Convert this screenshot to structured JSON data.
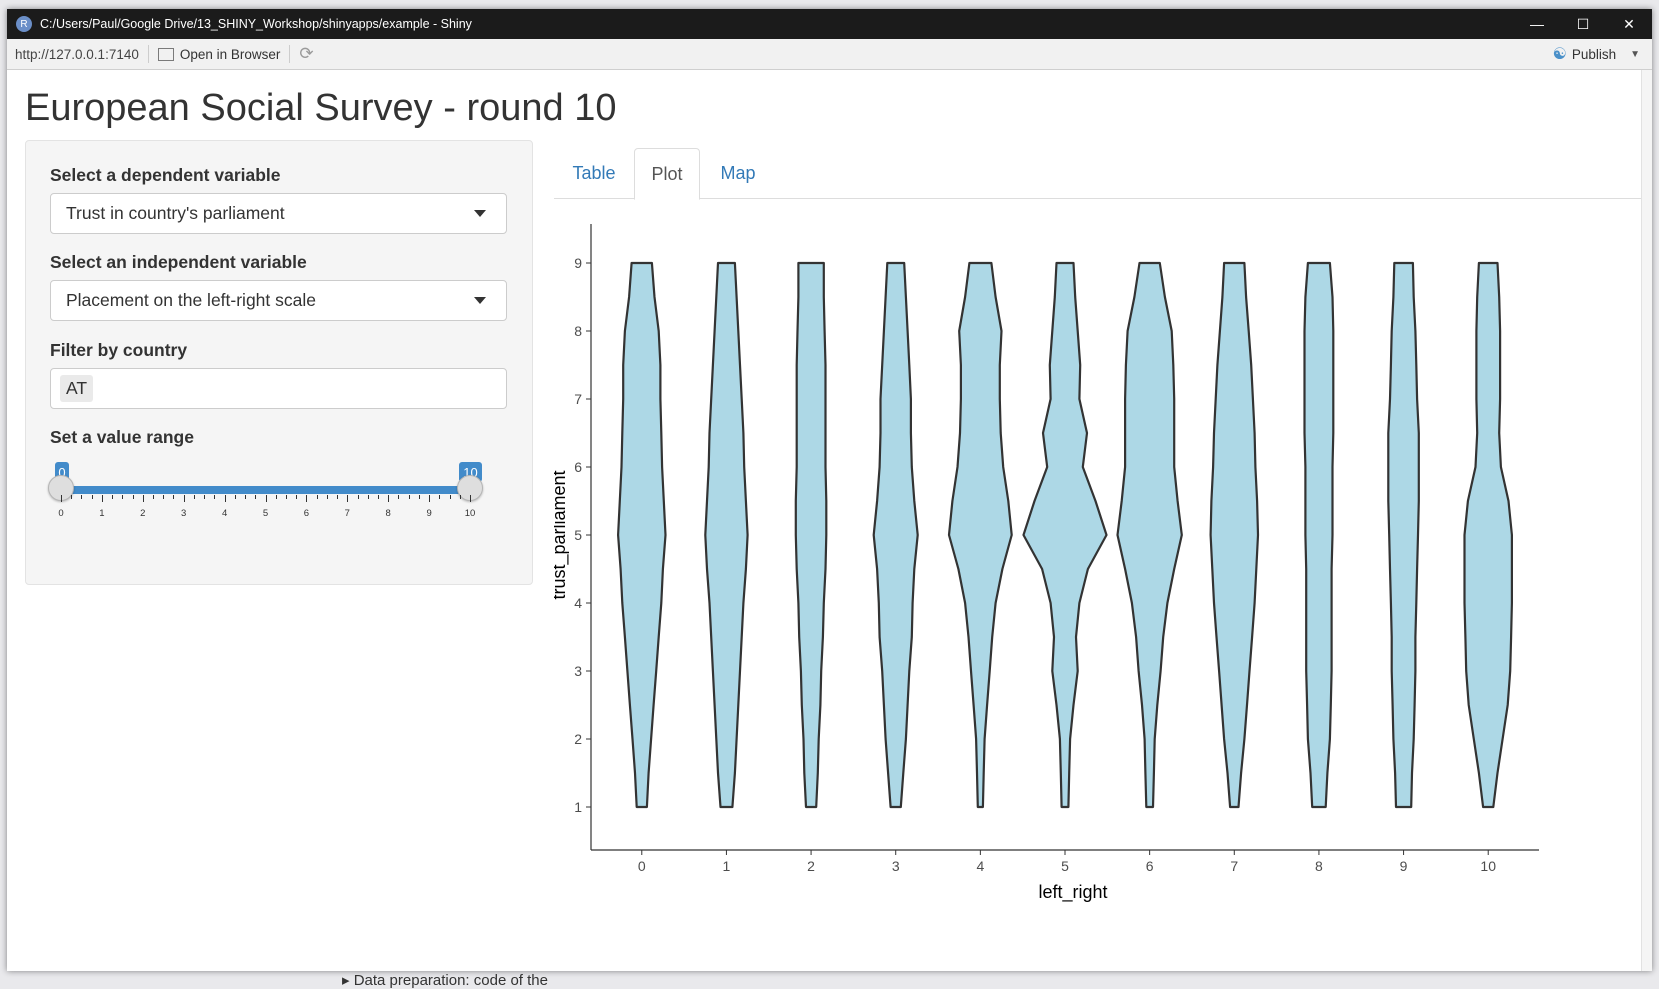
{
  "window": {
    "title": "C:/Users/Paul/Google Drive/13_SHINY_Workshop/shinyapps/example - Shiny",
    "app_icon": "R",
    "minimize_icon": "minimize-icon",
    "maximize_icon": "maximize-icon",
    "close_icon": "close-icon"
  },
  "toolbar": {
    "url": "http://127.0.0.1:7140",
    "open_browser_label": "Open in Browser",
    "publish_label": "Publish"
  },
  "page": {
    "title": "European Social Survey - round 10"
  },
  "sidebar": {
    "dependent_label": "Select a dependent variable",
    "dependent_value": "Trust in country's parliament",
    "independent_label": "Select an independent variable",
    "independent_value": "Placement on the left-right scale",
    "country_label": "Filter by country",
    "country_selected": "AT",
    "range_label": "Set a value range",
    "range_min": "0",
    "range_max": "10",
    "range_ticks": [
      "0",
      "1",
      "2",
      "3",
      "4",
      "5",
      "6",
      "7",
      "8",
      "9",
      "10"
    ]
  },
  "tabs": [
    {
      "label": "Table",
      "active": false
    },
    {
      "label": "Plot",
      "active": true
    },
    {
      "label": "Map",
      "active": false
    }
  ],
  "chart_data": {
    "type": "violin",
    "xlabel": "left_right",
    "ylabel": "trust_parliament",
    "categories": [
      "0",
      "1",
      "2",
      "3",
      "4",
      "5",
      "6",
      "7",
      "8",
      "9",
      "10"
    ],
    "y_ticks": [
      1,
      2,
      3,
      4,
      5,
      6,
      7,
      8,
      9
    ],
    "ylim": [
      1,
      9
    ],
    "fill_color": "#add8e6",
    "outline_color": "#333333",
    "density_y": [
      1,
      1.5,
      2,
      2.5,
      3,
      3.5,
      4,
      4.5,
      5,
      5.5,
      6,
      6.5,
      7,
      7.5,
      8,
      8.5,
      9
    ],
    "violins": [
      {
        "x": "0",
        "halfwidth": [
          0.06,
          0.08,
          0.11,
          0.14,
          0.17,
          0.2,
          0.23,
          0.25,
          0.28,
          0.26,
          0.24,
          0.23,
          0.22,
          0.22,
          0.2,
          0.15,
          0.12
        ]
      },
      {
        "x": "1",
        "halfwidth": [
          0.07,
          0.1,
          0.12,
          0.14,
          0.16,
          0.18,
          0.2,
          0.23,
          0.25,
          0.23,
          0.21,
          0.2,
          0.18,
          0.16,
          0.14,
          0.12,
          0.1
        ]
      },
      {
        "x": "2",
        "halfwidth": [
          0.06,
          0.08,
          0.09,
          0.11,
          0.12,
          0.14,
          0.15,
          0.17,
          0.18,
          0.18,
          0.17,
          0.17,
          0.17,
          0.17,
          0.16,
          0.15,
          0.15
        ]
      },
      {
        "x": "3",
        "halfwidth": [
          0.06,
          0.09,
          0.12,
          0.14,
          0.16,
          0.19,
          0.2,
          0.22,
          0.26,
          0.22,
          0.19,
          0.18,
          0.18,
          0.16,
          0.14,
          0.12,
          0.1
        ]
      },
      {
        "x": "4",
        "halfwidth": [
          0.03,
          0.04,
          0.05,
          0.08,
          0.11,
          0.14,
          0.18,
          0.26,
          0.37,
          0.33,
          0.27,
          0.24,
          0.23,
          0.23,
          0.25,
          0.18,
          0.13
        ]
      },
      {
        "x": "5",
        "halfwidth": [
          0.04,
          0.05,
          0.06,
          0.1,
          0.15,
          0.13,
          0.17,
          0.27,
          0.49,
          0.36,
          0.21,
          0.26,
          0.17,
          0.18,
          0.15,
          0.12,
          0.1
        ]
      },
      {
        "x": "6",
        "halfwidth": [
          0.04,
          0.05,
          0.06,
          0.09,
          0.13,
          0.16,
          0.21,
          0.29,
          0.38,
          0.33,
          0.29,
          0.29,
          0.29,
          0.28,
          0.26,
          0.18,
          0.12
        ]
      },
      {
        "x": "7",
        "halfwidth": [
          0.05,
          0.08,
          0.12,
          0.15,
          0.18,
          0.21,
          0.24,
          0.26,
          0.28,
          0.27,
          0.25,
          0.24,
          0.22,
          0.2,
          0.17,
          0.14,
          0.12
        ]
      },
      {
        "x": "8",
        "halfwidth": [
          0.08,
          0.1,
          0.13,
          0.14,
          0.15,
          0.15,
          0.15,
          0.15,
          0.16,
          0.16,
          0.16,
          0.17,
          0.17,
          0.17,
          0.17,
          0.16,
          0.13
        ]
      },
      {
        "x": "9",
        "halfwidth": [
          0.09,
          0.1,
          0.12,
          0.13,
          0.14,
          0.14,
          0.15,
          0.16,
          0.17,
          0.18,
          0.18,
          0.18,
          0.16,
          0.15,
          0.14,
          0.12,
          0.11
        ]
      },
      {
        "x": "10",
        "halfwidth": [
          0.06,
          0.11,
          0.17,
          0.23,
          0.26,
          0.27,
          0.28,
          0.28,
          0.28,
          0.24,
          0.15,
          0.13,
          0.14,
          0.14,
          0.14,
          0.13,
          0.11
        ]
      }
    ]
  },
  "footer": {
    "text": "▸ Data preparation: code of the"
  }
}
